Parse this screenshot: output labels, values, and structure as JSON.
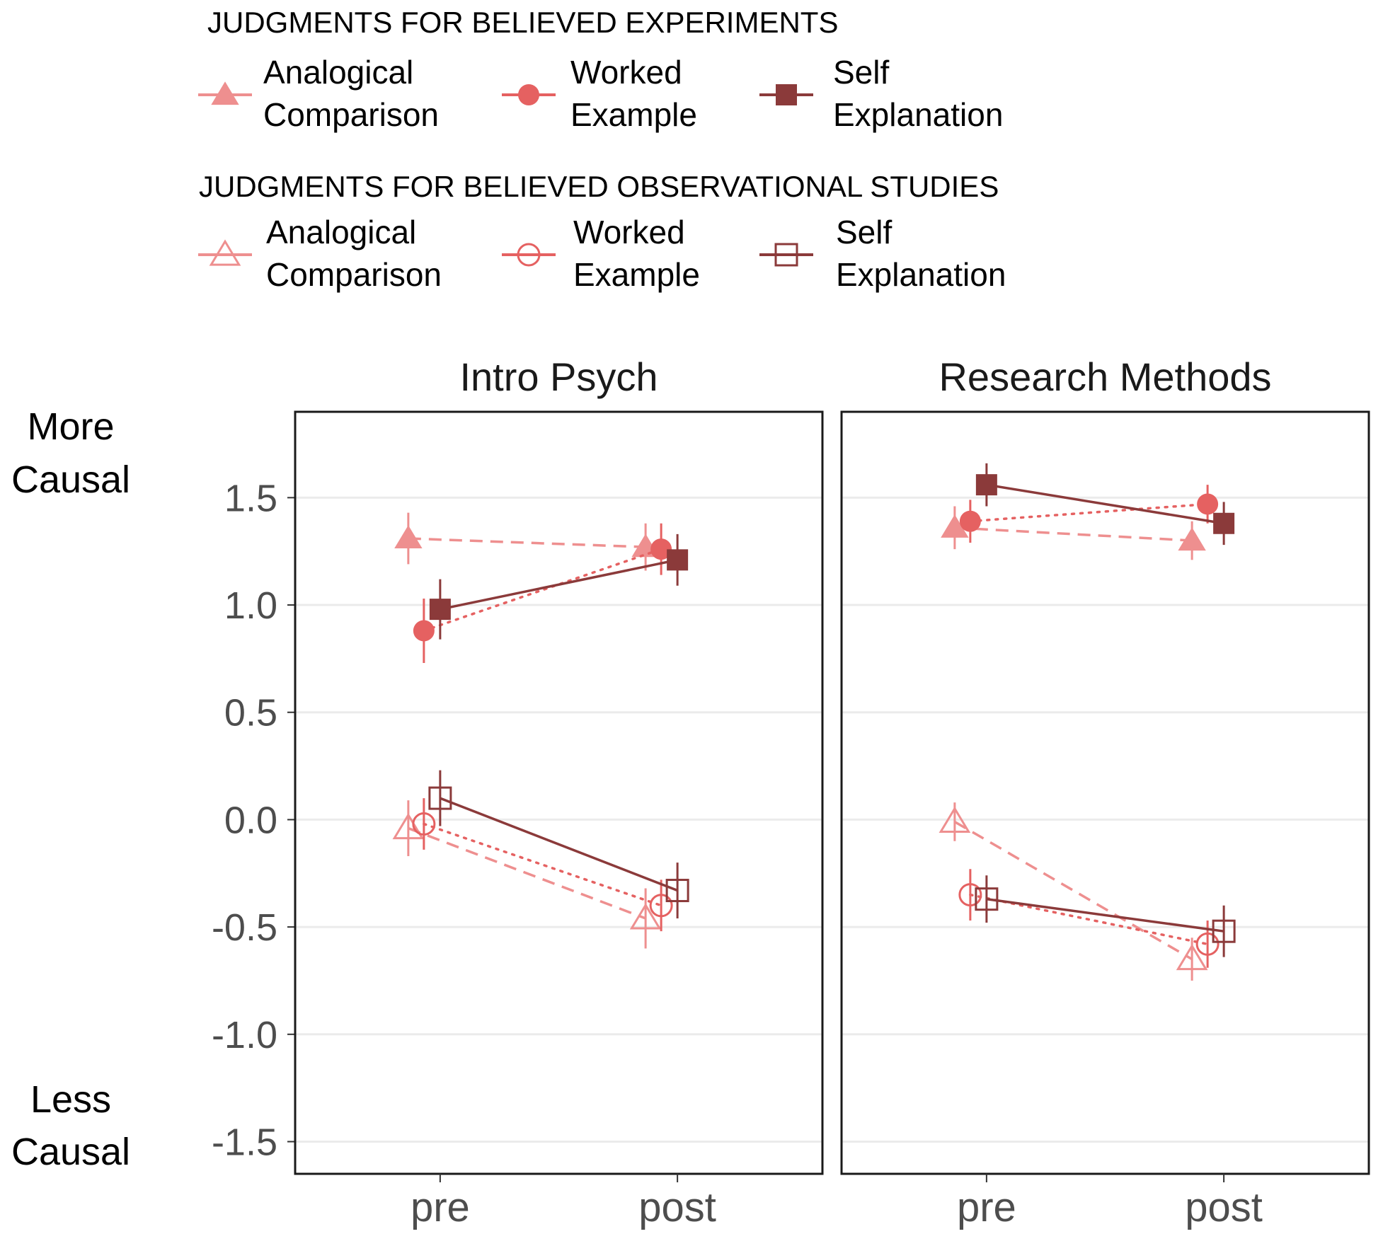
{
  "legend": {
    "experiments": {
      "title": "JUDGMENTS FOR BELIEVED EXPERIMENTS",
      "items": [
        {
          "label_lines": [
            "Analogical",
            "Comparison"
          ],
          "color": "#ee8f8f",
          "marker": "triangle",
          "filled": true
        },
        {
          "label_lines": [
            "Worked",
            "Example"
          ],
          "color": "#e56161",
          "marker": "circle",
          "filled": true
        },
        {
          "label_lines": [
            "Self",
            "Explanation"
          ],
          "color": "#8b3a3a",
          "marker": "square",
          "filled": true
        }
      ]
    },
    "observational": {
      "title": "JUDGMENTS FOR BELIEVED OBSERVATIONAL STUDIES",
      "items": [
        {
          "label_lines": [
            "Analogical",
            "Comparison"
          ],
          "color": "#ee8f8f",
          "marker": "triangle",
          "filled": false
        },
        {
          "label_lines": [
            "Worked",
            "Example"
          ],
          "color": "#e56161",
          "marker": "circle",
          "filled": false
        },
        {
          "label_lines": [
            "Self",
            "Explanation"
          ],
          "color": "#8b3a3a",
          "marker": "square",
          "filled": false
        }
      ]
    }
  },
  "side_labels": {
    "top": [
      "More",
      "Causal"
    ],
    "bottom": [
      "Less",
      "Causal"
    ]
  },
  "chart_data": {
    "type": "line",
    "categories": [
      "pre",
      "post"
    ],
    "ylim": [
      -1.65,
      1.9
    ],
    "yticks": [
      1.5,
      1.0,
      0.5,
      0.0,
      -0.5,
      -1.0,
      -1.5
    ],
    "ytick_labels": [
      "1.5",
      "1.0",
      "0.5",
      "0.0",
      "-0.5",
      "-1.0",
      "-1.5"
    ],
    "grid": true,
    "panels": [
      {
        "title": "Intro Psych",
        "series": [
          {
            "group": "experiments",
            "method": "Analogical Comparison",
            "values": [
              1.31,
              1.27
            ],
            "error": [
              0.12,
              0.11
            ]
          },
          {
            "group": "experiments",
            "method": "Worked Example",
            "values": [
              0.88,
              1.26
            ],
            "error": [
              0.15,
              0.12
            ]
          },
          {
            "group": "experiments",
            "method": "Self Explanation",
            "values": [
              0.98,
              1.21
            ],
            "error": [
              0.14,
              0.12
            ]
          },
          {
            "group": "observational",
            "method": "Analogical Comparison",
            "values": [
              -0.04,
              -0.46
            ],
            "error": [
              0.13,
              0.14
            ]
          },
          {
            "group": "observational",
            "method": "Worked Example",
            "values": [
              -0.02,
              -0.4
            ],
            "error": [
              0.12,
              0.12
            ]
          },
          {
            "group": "observational",
            "method": "Self Explanation",
            "values": [
              0.1,
              -0.33
            ],
            "error": [
              0.13,
              0.13
            ]
          }
        ]
      },
      {
        "title": "Research Methods",
        "series": [
          {
            "group": "experiments",
            "method": "Analogical Comparison",
            "values": [
              1.36,
              1.3
            ],
            "error": [
              0.1,
              0.09
            ]
          },
          {
            "group": "experiments",
            "method": "Worked Example",
            "values": [
              1.39,
              1.47
            ],
            "error": [
              0.1,
              0.09
            ]
          },
          {
            "group": "experiments",
            "method": "Self Explanation",
            "values": [
              1.56,
              1.38
            ],
            "error": [
              0.1,
              0.1
            ]
          },
          {
            "group": "observational",
            "method": "Analogical Comparison",
            "values": [
              -0.01,
              -0.65
            ],
            "error": [
              0.09,
              0.1
            ]
          },
          {
            "group": "observational",
            "method": "Worked Example",
            "values": [
              -0.35,
              -0.58
            ],
            "error": [
              0.12,
              0.11
            ]
          },
          {
            "group": "observational",
            "method": "Self Explanation",
            "values": [
              -0.37,
              -0.52
            ],
            "error": [
              0.11,
              0.12
            ]
          }
        ]
      }
    ]
  }
}
